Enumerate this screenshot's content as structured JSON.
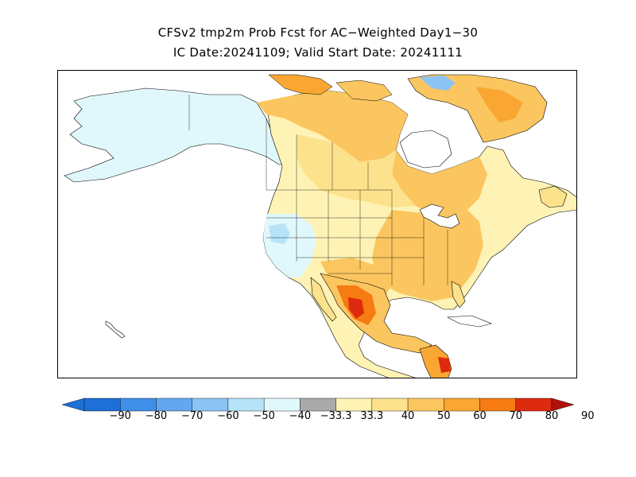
{
  "title": {
    "line1": "CFSv2 tmp2m Prob Fcst for AC−Weighted Day1−30",
    "line2": "IC Date:20241109; Valid Start Date: 20241111"
  },
  "colors": {
    "below_90": "#1e6fd6",
    "below_80": "#3f8fe8",
    "below_70": "#64a7ef",
    "below_60": "#8cc3f5",
    "below_50": "#b6e3f7",
    "below_40": "#e0f8fb",
    "near_normal": "#aaaaaa",
    "above_40": "#fef3b5",
    "above_50": "#fce28c",
    "above_60": "#fbc660",
    "above_70": "#f9a732",
    "above_80": "#f57b12",
    "above_90": "#de2a0e",
    "above_max": "#b0120a",
    "ocean": "#ffffff",
    "coastline": "#000000"
  },
  "map": {
    "projection": "polar-stereographic",
    "region": "North America",
    "coastlines": true,
    "state_borders": true
  },
  "legend": {
    "ticks": [
      "−90",
      "−80",
      "−70",
      "−60",
      "−50",
      "−40",
      "−33.3",
      "33.3",
      "40",
      "50",
      "60",
      "70",
      "80",
      "90"
    ]
  }
}
